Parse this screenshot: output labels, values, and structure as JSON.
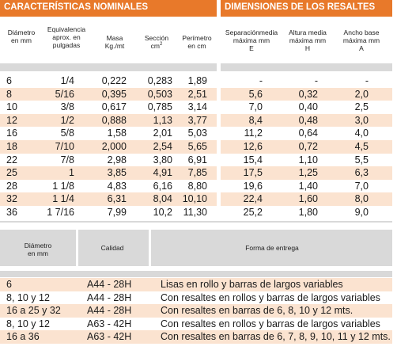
{
  "sections": {
    "nominal_title": "CARACTERÍSTICAS NOMINALES",
    "resaltes_title": "DIMENSIONES DE LOS RESALTES"
  },
  "headers": {
    "diametro": [
      "Diámetro",
      "en mm"
    ],
    "equivalencia": [
      "Equivalencia",
      "aprox. en",
      "pulgadas"
    ],
    "masa": [
      "Masa",
      "Kg./mt"
    ],
    "seccion": [
      "Sección",
      "cm"
    ],
    "seccion_sup": "2",
    "perimetro": [
      "Perímetro",
      "en cm"
    ],
    "separacion": [
      "Separaciónmedia",
      "máxima mm",
      "E"
    ],
    "altura": [
      "Altura media",
      "máxima mm",
      "H"
    ],
    "ancho": [
      "Ancho base",
      "máxima mm",
      "A"
    ]
  },
  "rows": [
    {
      "d": "6",
      "pulg": "1/4",
      "masa": "0,222",
      "secc": "0,283",
      "perim": "1,89",
      "e": "-",
      "h": "-",
      "a": "-"
    },
    {
      "d": "8",
      "pulg": "5/16",
      "masa": "0,395",
      "secc": "0,503",
      "perim": "2,51",
      "e": "5,6",
      "h": "0,32",
      "a": "2,0"
    },
    {
      "d": "10",
      "pulg": "3/8",
      "masa": "0,617",
      "secc": "0,785",
      "perim": "3,14",
      "e": "7,0",
      "h": "0,40",
      "a": "2,5"
    },
    {
      "d": "12",
      "pulg": "1/2",
      "masa": "0,888",
      "secc": "1,13",
      "perim": "3,77",
      "e": "8,4",
      "h": "0,48",
      "a": "3,0"
    },
    {
      "d": "16",
      "pulg": "5/8",
      "masa": "1,58",
      "secc": "2,01",
      "perim": "5,03",
      "e": "11,2",
      "h": "0,64",
      "a": "4,0"
    },
    {
      "d": "18",
      "pulg": "7/10",
      "masa": "2,000",
      "secc": "2,54",
      "perim": "5,65",
      "e": "12,6",
      "h": "0,72",
      "a": "4,5"
    },
    {
      "d": "22",
      "pulg": "7/8",
      "masa": "2,98",
      "secc": "3,80",
      "perim": "6,91",
      "e": "15,4",
      "h": "1,10",
      "a": "5,5"
    },
    {
      "d": "25",
      "pulg": "1",
      "masa": "3,85",
      "secc": "4,91",
      "perim": "7,85",
      "e": "17,5",
      "h": "1,25",
      "a": "6,3"
    },
    {
      "d": "28",
      "pulg": "1 1/8",
      "masa": "4,83",
      "secc": "6,16",
      "perim": "8,80",
      "e": "19,6",
      "h": "1,40",
      "a": "7,0"
    },
    {
      "d": "32",
      "pulg": "1 1/4",
      "masa": "6,31",
      "secc": "8,04",
      "perim": "10,10",
      "e": "22,4",
      "h": "1,60",
      "a": "8,0"
    },
    {
      "d": "36",
      "pulg": "1 7/16",
      "masa": "7,99",
      "secc": "10,2",
      "perim": "11,30",
      "e": "25,2",
      "h": "1,80",
      "a": "9,0"
    }
  ],
  "bottom_headers": {
    "diametro": [
      "Diámetro",
      "en mm"
    ],
    "calidad": "Calidad",
    "forma": "Forma de entrega"
  },
  "bottom_rows": [
    {
      "d": "6",
      "cal": "A44 - 28H",
      "forma": "Lisas en rollo y barras de largos variables"
    },
    {
      "d": "8, 10 y 12",
      "cal": "A44 - 28H",
      "forma": "Con resaltes en rollos y barras de largos variables"
    },
    {
      "d": "16 a 25 y 32",
      "cal": "A44 - 28H",
      "forma": "Con resaltes en barras de 6, 8, 10 y 12 mts."
    },
    {
      "d": "8, 10 y 12",
      "cal": "A63 - 42H",
      "forma": "Con resaltes en rollos y barras de largos variables"
    },
    {
      "d": "16 a 36",
      "cal": "A63 - 42H",
      "forma": "Con resaltes en barras de 6, 7, 8, 9, 10, 11 y 12 mts."
    }
  ]
}
